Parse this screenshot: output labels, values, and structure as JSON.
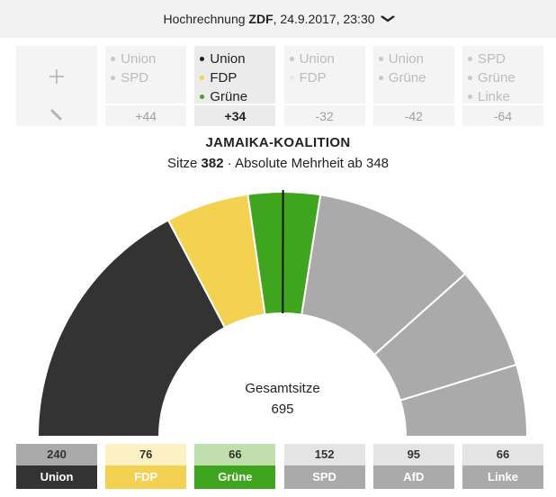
{
  "header": {
    "prefix": "Hochrechnung",
    "source": "ZDF",
    "datetime": ", 24.9.2017, 23:30",
    "chevron_icon": "chevron-down-icon"
  },
  "coalitions": [
    {
      "parties": [],
      "diff": "",
      "custom": true,
      "icons": [
        "plus-icon",
        "pencil-icon"
      ]
    },
    {
      "parties": [
        {
          "name": "Union",
          "color": "#c8c8c8"
        },
        {
          "name": "SPD",
          "color": "#c8c8c8"
        }
      ],
      "diff": "+44"
    },
    {
      "parties": [
        {
          "name": "Union",
          "color": "#222222"
        },
        {
          "name": "FDP",
          "color": "#f0d050"
        },
        {
          "name": "Grüne",
          "color": "#3fa51e"
        }
      ],
      "diff": "+34",
      "active": true
    },
    {
      "parties": [
        {
          "name": "Union",
          "color": "#c8c8c8"
        },
        {
          "name": "FDP",
          "color": "#e8e8e8"
        }
      ],
      "diff": "-32"
    },
    {
      "parties": [
        {
          "name": "Union",
          "color": "#c8c8c8"
        },
        {
          "name": "Grüne",
          "color": "#c8c8c8"
        }
      ],
      "diff": "-42"
    },
    {
      "parties": [
        {
          "name": "SPD",
          "color": "#c8c8c8"
        },
        {
          "name": "Grüne",
          "color": "#c8c8c8"
        },
        {
          "name": "Linke",
          "color": "#c8c8c8"
        }
      ],
      "diff": "-64"
    }
  ],
  "coalition_title": "JAMAIKA-KOALITION",
  "seats_label": "Sitze",
  "seats_value": "382",
  "majority_text": "Absolute Mehrheit ab 348",
  "chart_data": {
    "type": "pie",
    "center_label": "Gesamtsitze",
    "total": "695",
    "categories": [
      "Union",
      "FDP",
      "Grüne",
      "SPD",
      "AfD",
      "Linke"
    ],
    "values": [
      240,
      76,
      66,
      152,
      95,
      66
    ],
    "colors": [
      "#333333",
      "#f2d250",
      "#3fa51e",
      "#aaaaaa",
      "#aaaaaa",
      "#aaaaaa"
    ],
    "majority": 348
  },
  "parties": [
    {
      "name": "Union",
      "seats": "240",
      "seat_bg": "#aaaaaa",
      "name_bg": "#333333"
    },
    {
      "name": "FDP",
      "seats": "76",
      "seat_bg": "#fbf1c2",
      "name_bg": "#f2d250"
    },
    {
      "name": "Grüne",
      "seats": "66",
      "seat_bg": "#bfe0ad",
      "name_bg": "#3fa51e"
    },
    {
      "name": "SPD",
      "seats": "152",
      "seat_bg": "#e4e4e4",
      "name_bg": "#aaaaaa"
    },
    {
      "name": "AfD",
      "seats": "95",
      "seat_bg": "#e4e4e4",
      "name_bg": "#aaaaaa"
    },
    {
      "name": "Linke",
      "seats": "66",
      "seat_bg": "#e4e4e4",
      "name_bg": "#aaaaaa"
    }
  ]
}
